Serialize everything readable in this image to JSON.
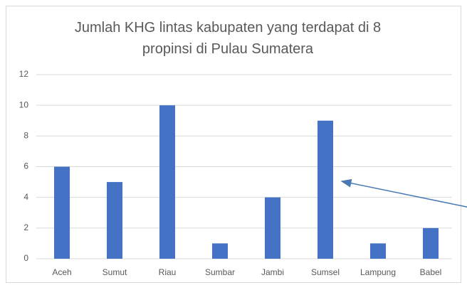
{
  "chart_data": {
    "type": "bar",
    "title": "Jumlah KHG lintas kabupaten yang terdapat di 8 propinsi di Pulau Sumatera",
    "categories": [
      "Aceh",
      "Sumut",
      "Riau",
      "Sumbar",
      "Jambi",
      "Sumsel",
      "Lampung",
      "Babel"
    ],
    "values": [
      6,
      5,
      10,
      1,
      4,
      9,
      1,
      2
    ],
    "color": "#4472c4",
    "ylim": [
      0,
      12
    ],
    "yticks": [
      0,
      2,
      4,
      6,
      8,
      10,
      12
    ],
    "grid": true
  }
}
